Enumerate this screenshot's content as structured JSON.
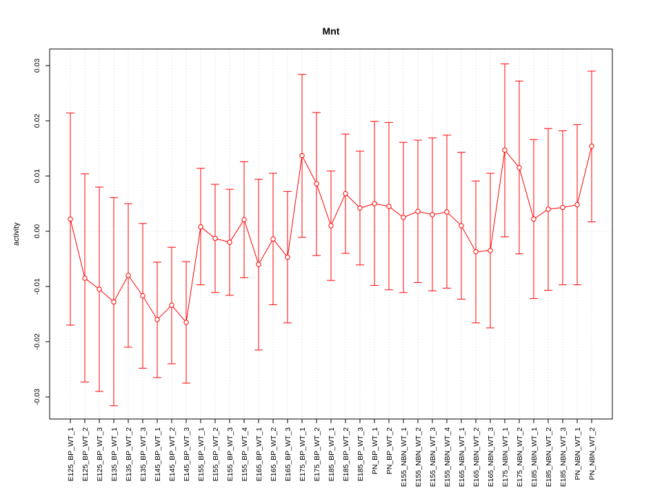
{
  "chart_data": {
    "type": "line",
    "title": "Mnt",
    "xlabel": "",
    "ylabel": "activity",
    "ylim": [
      -0.034,
      0.033
    ],
    "yticks": [
      "0.03",
      "0.02",
      "0.01",
      "0.00",
      "-0.01",
      "-0.02",
      "-0.03"
    ],
    "ytick_values": [
      0.03,
      0.02,
      0.01,
      0.0,
      -0.01,
      -0.02,
      -0.03
    ],
    "grid": true,
    "reference_line": 0.0,
    "colors": {
      "series": "#ff0000",
      "grid": "#d3d3d3",
      "frame": "#000000"
    },
    "categories": [
      "E125_BP_WT_1",
      "E125_BP_WT_2",
      "E125_BP_WT_3",
      "E135_BP_WT_1",
      "E135_BP_WT_2",
      "E135_BP_WT_3",
      "E145_BP_WT_1",
      "E145_BP_WT_2",
      "E145_BP_WT_3",
      "E155_BP_WT_1",
      "E155_BP_WT_2",
      "E155_BP_WT_3",
      "E155_BP_WT_4",
      "E165_BP_WT_1",
      "E165_BP_WT_2",
      "E165_BP_WT_3",
      "E175_BP_WT_1",
      "E175_BP_WT_2",
      "E185_BP_WT_1",
      "E185_BP_WT_2",
      "E185_BP_WT_3",
      "PN_BP_WT_1",
      "PN_BP_WT_2",
      "E155_NBN_WT_1",
      "E155_NBN_WT_2",
      "E155_NBN_WT_3",
      "E155_NBN_WT_4",
      "E165_NBN_WT_1",
      "E165_NBN_WT_2",
      "E165_NBN_WT_3",
      "E175_NBN_WT_1",
      "E175_NBN_WT_2",
      "E185_NBN_WT_1",
      "E185_NBN_WT_2",
      "E185_NBN_WT_3",
      "PN_NBN_WT_1",
      "PN_NBN_WT_2"
    ],
    "values": [
      0.0022,
      -0.0085,
      -0.0105,
      -0.0128,
      -0.008,
      -0.0117,
      -0.016,
      -0.0134,
      -0.0165,
      0.0008,
      -0.0013,
      -0.002,
      0.0021,
      -0.006,
      -0.0014,
      -0.0047,
      0.0137,
      0.0086,
      0.001,
      0.0068,
      0.0042,
      0.005,
      0.0045,
      0.0025,
      0.0036,
      0.003,
      0.0035,
      0.001,
      -0.0037,
      -0.0035,
      0.0147,
      0.0115,
      0.0022,
      0.004,
      0.0043,
      0.0048,
      0.0154
    ],
    "upper": [
      0.0214,
      0.0104,
      0.008,
      0.0061,
      0.005,
      0.0014,
      -0.0056,
      -0.0029,
      -0.0055,
      0.0114,
      0.0085,
      0.0076,
      0.0126,
      0.0094,
      0.0105,
      0.0072,
      0.0284,
      0.0215,
      0.0109,
      0.0176,
      0.0145,
      0.0199,
      0.0197,
      0.0161,
      0.0165,
      0.0169,
      0.0174,
      0.0143,
      0.0091,
      0.0105,
      0.0303,
      0.0272,
      0.0166,
      0.0186,
      0.0182,
      0.0193,
      0.029
    ],
    "lower": [
      -0.017,
      -0.0273,
      -0.029,
      -0.0316,
      -0.021,
      -0.0248,
      -0.0265,
      -0.024,
      -0.0275,
      -0.0097,
      -0.0111,
      -0.0116,
      -0.0084,
      -0.0215,
      -0.0133,
      -0.0166,
      -0.0011,
      -0.0044,
      -0.0089,
      -0.004,
      -0.0061,
      -0.0098,
      -0.0106,
      -0.0111,
      -0.0093,
      -0.0108,
      -0.0103,
      -0.0123,
      -0.0166,
      -0.0175,
      -0.001,
      -0.0041,
      -0.0122,
      -0.0107,
      -0.0097,
      -0.0097,
      0.0017
    ]
  }
}
